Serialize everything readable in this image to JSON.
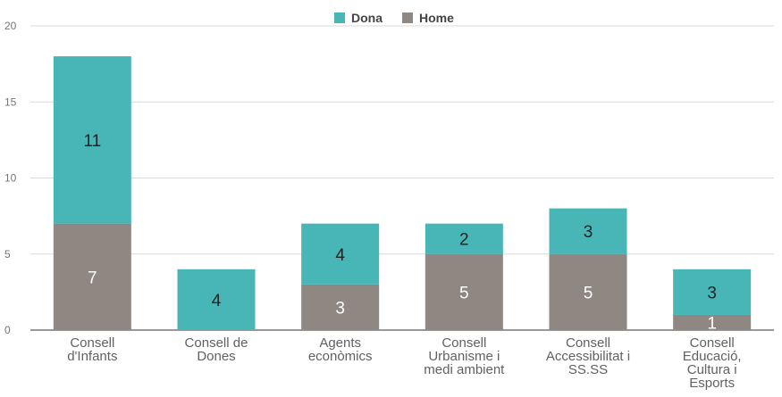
{
  "chart_data": {
    "type": "bar",
    "stacked": true,
    "categories": [
      [
        "Consell",
        "d'Infants"
      ],
      [
        "Consell de",
        "Dones"
      ],
      [
        "Agents",
        "econòmics"
      ],
      [
        "Consell",
        "Urbanisme i",
        "medi ambient"
      ],
      [
        "Consell",
        "Accessibilitat i",
        "SS.SS"
      ],
      [
        "Consell",
        "Educació,",
        "Cultura i",
        "Esports"
      ]
    ],
    "series": [
      {
        "name": "Home",
        "color": "#8e8782",
        "label_color": "#ffffff",
        "values": [
          7,
          0,
          3,
          5,
          5,
          1
        ]
      },
      {
        "name": "Dona",
        "color": "#48b5b6",
        "label_color": "#222222",
        "values": [
          11,
          4,
          4,
          2,
          3,
          3
        ]
      }
    ],
    "legend_order": [
      "Dona",
      "Home"
    ],
    "legend_position": "top",
    "ylim": [
      0,
      20
    ],
    "yticks": [
      0,
      5,
      10,
      15,
      20
    ],
    "grid": true
  }
}
